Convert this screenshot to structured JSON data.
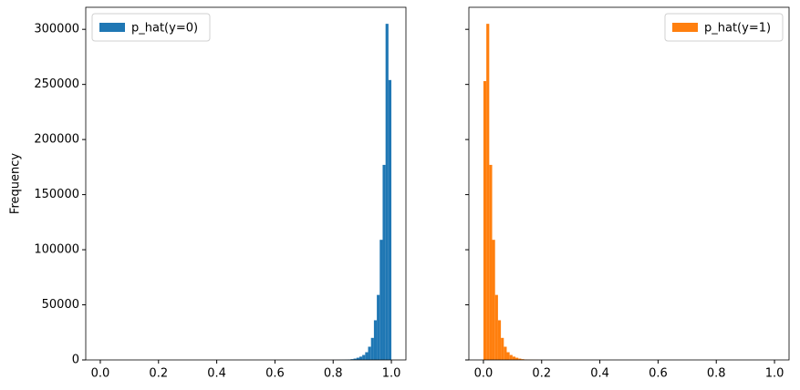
{
  "chart_data": [
    {
      "type": "histogram",
      "ylabel": "Frequency",
      "legend": "upper left",
      "bins": [
        0,
        0.01,
        0.02,
        0.03,
        0.04,
        0.05,
        0.06,
        0.07,
        0.08,
        0.09,
        0.1,
        0.11,
        0.12,
        0.13,
        0.14,
        0.15,
        0.16,
        0.17,
        0.18,
        0.19,
        0.2,
        0.21,
        0.22,
        0.23,
        0.24,
        0.25,
        0.26,
        0.27,
        0.28,
        0.29,
        0.3,
        0.31,
        0.32,
        0.33,
        0.34,
        0.35,
        0.36,
        0.37,
        0.38,
        0.39,
        0.4,
        0.41,
        0.42,
        0.43,
        0.44,
        0.45,
        0.46,
        0.47,
        0.48,
        0.49,
        0.5,
        0.51,
        0.52,
        0.53,
        0.54,
        0.55,
        0.56,
        0.57,
        0.58,
        0.59,
        0.6,
        0.61,
        0.62,
        0.63,
        0.64,
        0.65,
        0.66,
        0.67,
        0.68,
        0.69,
        0.7,
        0.71,
        0.72,
        0.73,
        0.74,
        0.75,
        0.76,
        0.77,
        0.78,
        0.79,
        0.8,
        0.81,
        0.82,
        0.83,
        0.84,
        0.85,
        0.86,
        0.87,
        0.88,
        0.89,
        0.9,
        0.91,
        0.92,
        0.93,
        0.94,
        0.95,
        0.96,
        0.97,
        0.98,
        0.99,
        1
      ],
      "series": [
        {
          "name": "p_hat(y=0)",
          "color": "#1f77b4",
          "values": [
            0,
            0,
            0,
            0,
            0,
            0,
            0,
            0,
            0,
            0,
            0,
            0,
            0,
            0,
            0,
            0,
            0,
            0,
            0,
            0,
            0,
            0,
            0,
            0,
            0,
            0,
            0,
            0,
            0,
            0,
            0,
            0,
            0,
            0,
            0,
            0,
            0,
            0,
            0,
            0,
            0,
            0,
            0,
            0,
            0,
            0,
            0,
            0,
            0,
            0,
            0,
            0,
            0,
            0,
            0,
            0,
            0,
            0,
            0,
            0,
            0,
            0,
            0,
            0,
            0,
            0,
            0,
            0,
            0,
            0,
            0,
            0,
            0,
            0,
            0,
            0,
            0,
            0,
            0,
            0,
            50,
            80,
            120,
            180,
            250,
            400,
            700,
            1200,
            2000,
            3000,
            4500,
            7000,
            12000,
            20000,
            36000,
            59000,
            109000,
            177000,
            305000,
            254000
          ]
        }
      ],
      "xlim": [
        -0.05,
        1.05
      ],
      "xticks": [
        {
          "value": 0,
          "label": "0.0"
        },
        0.2,
        0.4,
        0.6,
        0.8,
        {
          "value": 1,
          "label": "1.0"
        }
      ],
      "ylim": [
        0,
        320000
      ],
      "yticks": [
        0,
        50000,
        100000,
        150000,
        200000,
        250000,
        300000
      ]
    },
    {
      "type": "histogram",
      "legend": "upper right",
      "bins": [
        0,
        0.01,
        0.02,
        0.03,
        0.04,
        0.05,
        0.06,
        0.07,
        0.08,
        0.09,
        0.1,
        0.11,
        0.12,
        0.13,
        0.14,
        0.15,
        0.16,
        0.17,
        0.18,
        0.19,
        0.2,
        0.21,
        0.22,
        0.23,
        0.24,
        0.25,
        0.26,
        0.27,
        0.28,
        0.29,
        0.3,
        0.31,
        0.32,
        0.33,
        0.34,
        0.35,
        0.36,
        0.37,
        0.38,
        0.39,
        0.4,
        0.41,
        0.42,
        0.43,
        0.44,
        0.45,
        0.46,
        0.47,
        0.48,
        0.49,
        0.5,
        0.51,
        0.52,
        0.53,
        0.54,
        0.55,
        0.56,
        0.57,
        0.58,
        0.59,
        0.6,
        0.61,
        0.62,
        0.63,
        0.64,
        0.65,
        0.66,
        0.67,
        0.68,
        0.69,
        0.7,
        0.71,
        0.72,
        0.73,
        0.74,
        0.75,
        0.76,
        0.77,
        0.78,
        0.79,
        0.8,
        0.81,
        0.82,
        0.83,
        0.84,
        0.85,
        0.86,
        0.87,
        0.88,
        0.89,
        0.9,
        0.91,
        0.92,
        0.93,
        0.94,
        0.95,
        0.96,
        0.97,
        0.98,
        0.99,
        1
      ],
      "series": [
        {
          "name": "p_hat(y=1)",
          "color": "#ff7f0e",
          "values": [
            253000,
            305000,
            177000,
            109000,
            59000,
            36000,
            20000,
            12000,
            7000,
            4500,
            3000,
            2000,
            1200,
            700,
            400,
            250,
            180,
            120,
            80,
            50,
            0,
            0,
            0,
            0,
            0,
            0,
            0,
            0,
            0,
            0,
            0,
            0,
            0,
            0,
            0,
            0,
            0,
            0,
            0,
            0,
            0,
            0,
            0,
            0,
            0,
            0,
            0,
            0,
            0,
            0,
            0,
            0,
            0,
            0,
            0,
            0,
            0,
            0,
            0,
            0,
            0,
            0,
            0,
            0,
            0,
            0,
            0,
            0,
            0,
            0,
            0,
            0,
            0,
            0,
            0,
            0,
            0,
            0,
            0,
            0,
            0,
            0,
            0,
            0,
            0,
            0,
            0,
            0,
            0,
            0,
            0,
            0,
            0,
            0,
            0,
            0,
            0,
            0,
            0,
            0
          ]
        }
      ],
      "xlim": [
        -0.05,
        1.05
      ],
      "xticks": [
        {
          "value": 0,
          "label": "0.0"
        },
        0.2,
        0.4,
        0.6,
        0.8,
        {
          "value": 1,
          "label": "1.0"
        }
      ],
      "ylim": [
        0,
        320000
      ]
    }
  ]
}
